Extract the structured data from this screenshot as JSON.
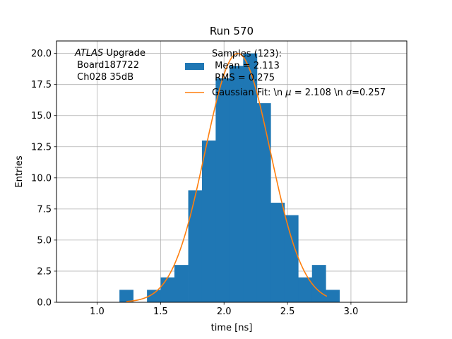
{
  "chart_data": {
    "type": "bar",
    "title": "Run 570",
    "xlabel": "time [ns]",
    "ylabel": "Entries",
    "xlim": [
      0.68,
      3.44
    ],
    "ylim": [
      0,
      21
    ],
    "xticks": [
      "1.0",
      "1.5",
      "2.0",
      "2.5",
      "3.0"
    ],
    "yticks": [
      "0.0",
      "2.5",
      "5.0",
      "7.5",
      "10.0",
      "12.5",
      "15.0",
      "17.5",
      "20.0"
    ],
    "grid": true,
    "legend_position": "top-right",
    "annotation": {
      "italic": "ATLAS",
      "line1_rest": " Upgrade",
      "line2": " Board187722",
      "line3": " Ch028 35dB"
    },
    "bin_width": 0.1083,
    "bins": [
      {
        "left": 1.176,
        "value": 1
      },
      {
        "left": 1.393,
        "value": 1
      },
      {
        "left": 1.501,
        "value": 2
      },
      {
        "left": 1.609,
        "value": 3
      },
      {
        "left": 1.718,
        "value": 9
      },
      {
        "left": 1.826,
        "value": 13
      },
      {
        "left": 1.934,
        "value": 18
      },
      {
        "left": 2.043,
        "value": 19
      },
      {
        "left": 2.151,
        "value": 20
      },
      {
        "left": 2.259,
        "value": 16
      },
      {
        "left": 2.368,
        "value": 8
      },
      {
        "left": 2.476,
        "value": 7
      },
      {
        "left": 2.584,
        "value": 2
      },
      {
        "left": 2.693,
        "value": 3
      },
      {
        "left": 2.801,
        "value": 1
      }
    ],
    "series": [
      {
        "name": "Samples (123):\n Mean = 2.113\n RMS = 0.275",
        "kind": "histogram",
        "color": "#1f77b4"
      },
      {
        "name": "Gaussian Fit: \\n $\\mu$ = 2.108 \\n $\\sigma$=0.257",
        "kind": "line",
        "color": "#ff7f0e",
        "fit": {
          "amplitude": 20.0,
          "mu": 2.108,
          "sigma": 0.257,
          "x_range": [
            1.23,
            2.81
          ]
        }
      }
    ],
    "legend": {
      "hist_line1": "Samples (123):",
      "hist_line2": " Mean = 2.113",
      "hist_line3": " RMS = 0.275",
      "fit_label_part1": "Gaussian Fit: \\n ",
      "fit_mu_symbol": "μ",
      "fit_label_part2": " = 2.108 \\n ",
      "fit_sigma_symbol": "σ",
      "fit_label_part3": "=0.257"
    }
  }
}
